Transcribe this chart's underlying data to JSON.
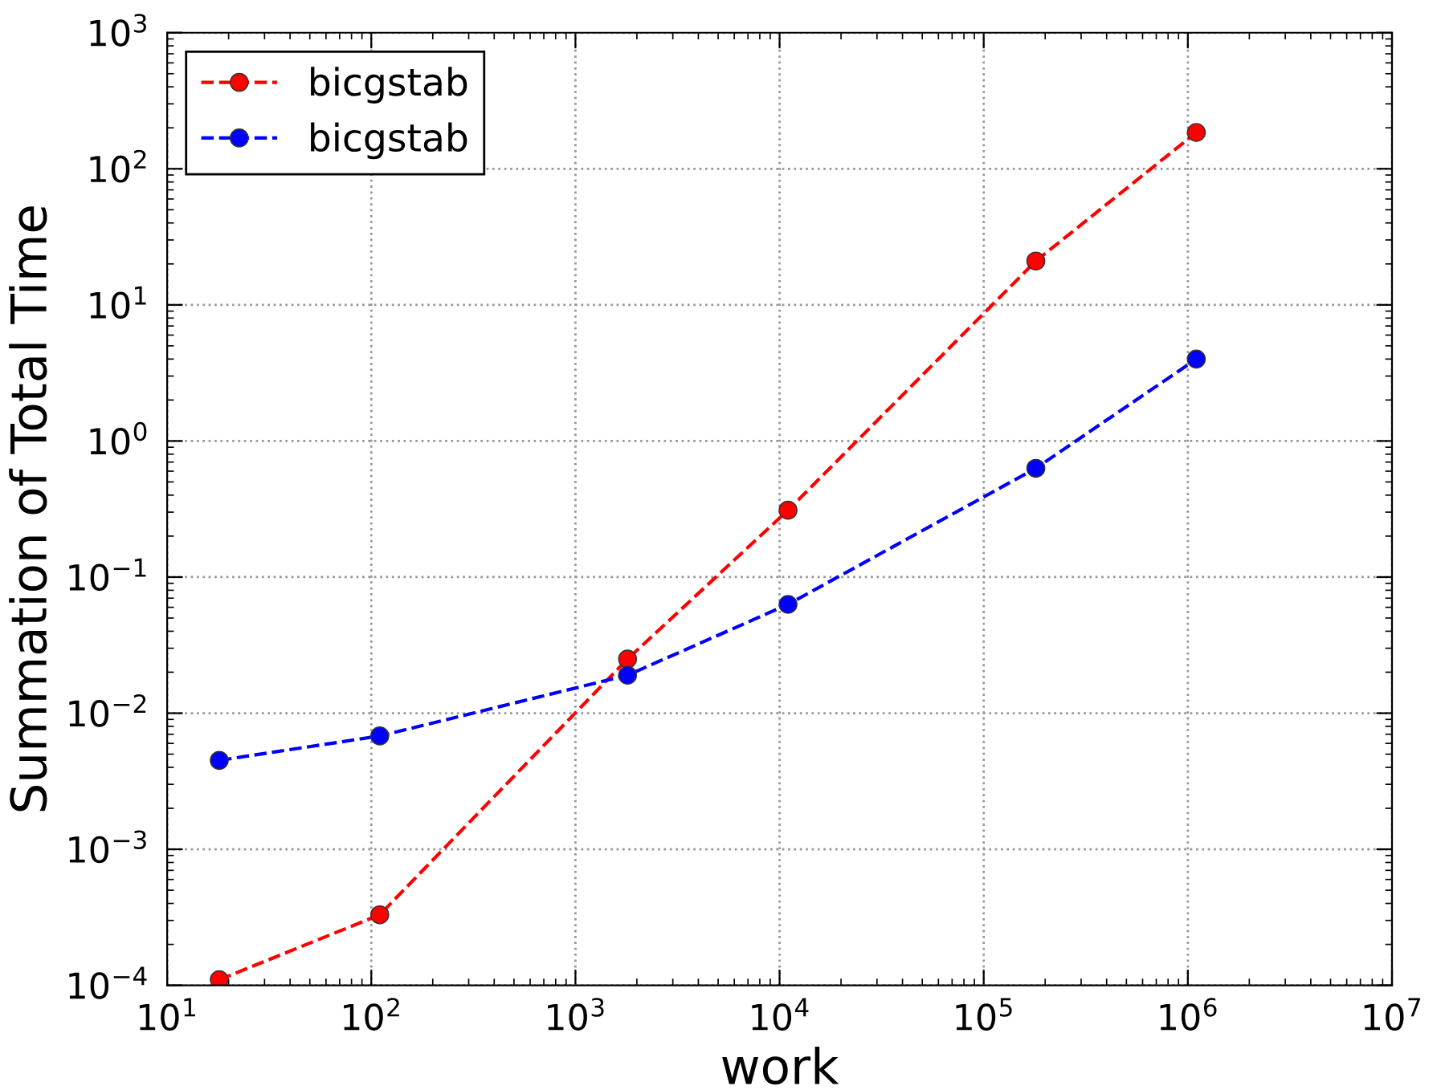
{
  "chart_data": {
    "type": "line",
    "xlabel": "work",
    "ylabel": "Summation of Total Time",
    "x": [
      18,
      110,
      1800,
      11000,
      180000,
      1100000
    ],
    "series": [
      {
        "name": "bicgstab",
        "color": "#ff0000",
        "values": [
          0.00011,
          0.00033,
          0.025,
          0.31,
          21,
          185
        ]
      },
      {
        "name": "bicgstab",
        "color": "#0000ff",
        "values": [
          0.0045,
          0.0068,
          0.019,
          0.063,
          0.63,
          4.0
        ]
      }
    ],
    "log": "xy",
    "xlim": [
      10,
      10000000
    ],
    "ylim": [
      0.0001,
      1000
    ],
    "xticks": [
      {
        "value": 10,
        "label": "10$^{1}$"
      },
      {
        "value": 100,
        "label": "10$^{2}$"
      },
      {
        "value": 1000,
        "label": "10$^{3}$"
      },
      {
        "value": 10000,
        "label": "10$^{4}$"
      },
      {
        "value": 100000,
        "label": "10$^{5}$"
      },
      {
        "value": 1000000,
        "label": "10$^{6}$"
      },
      {
        "value": 10000000,
        "label": "10$^{7}$"
      }
    ],
    "yticks": [
      {
        "value": 0.0001,
        "label": "10$^{−4}$"
      },
      {
        "value": 0.001,
        "label": "10$^{−3}$"
      },
      {
        "value": 0.01,
        "label": "10$^{−2}$"
      },
      {
        "value": 0.1,
        "label": "10$^{−1}$"
      },
      {
        "value": 1,
        "label": "10$^{0}$"
      },
      {
        "value": 10,
        "label": "10$^{1}$"
      },
      {
        "value": 100,
        "label": "10$^{2}$"
      },
      {
        "value": 1000,
        "label": "10$^{3}$"
      }
    ],
    "grid": true,
    "legend": "top left",
    "marker": "circle",
    "line_style": "dashed"
  }
}
